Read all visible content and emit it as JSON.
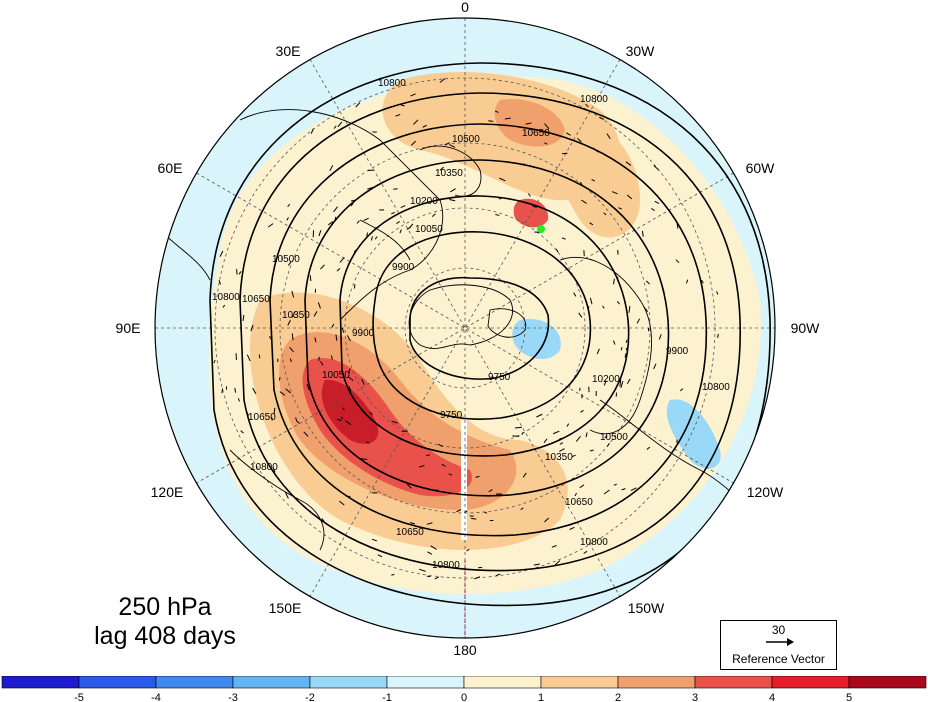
{
  "map": {
    "projection": "north-polar-stereographic",
    "longitude_labels": [
      "0",
      "30W",
      "60W",
      "90W",
      "120W",
      "150W",
      "180",
      "150E",
      "120E",
      "90E",
      "60E",
      "30E"
    ],
    "contours": [
      "9750",
      "9900",
      "10050",
      "10200",
      "10350",
      "10500",
      "10650",
      "10800"
    ],
    "marker": {
      "color": "#22ee22",
      "name": "green-dot-marker"
    }
  },
  "caption": {
    "level": "250 hPa",
    "lag": "lag 408 days"
  },
  "reference_vector": {
    "magnitude": "30",
    "label": "Reference Vector"
  },
  "colorbar": {
    "ticks": [
      "-5",
      "-4",
      "-3",
      "-2",
      "-1",
      "0",
      "1",
      "2",
      "3",
      "4",
      "5"
    ],
    "colors": [
      "#1c1ccc",
      "#2c5ae8",
      "#3f8af0",
      "#62b4f5",
      "#9ad8f8",
      "#d9f4fb",
      "#fdf2d0",
      "#f9cc94",
      "#f0a06c",
      "#e8524a",
      "#e41e2a",
      "#a80a1c"
    ]
  }
}
